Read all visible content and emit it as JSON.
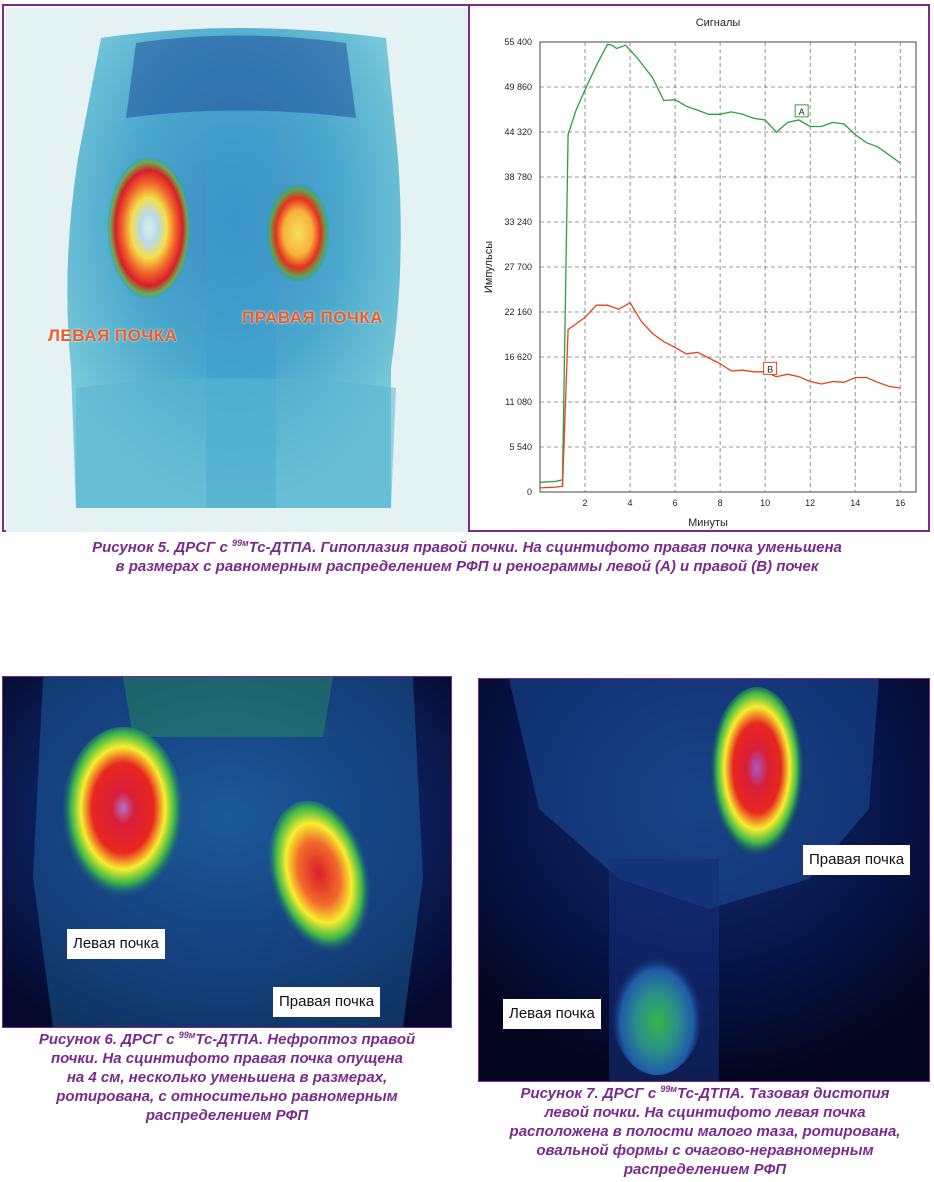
{
  "figure5": {
    "labels": {
      "left_kidney": "ЛЕВАЯ ПОЧКА",
      "right_kidney": "ПРАВАЯ ПОЧКА"
    },
    "caption": {
      "prefix": "Рисунок 5. ДРСГ с ",
      "isotope_sup": "99м",
      "line1_rest": "Тс-ДТПА. Гипоплазия правой почки. На сцинтифото правая почка уменьшена",
      "line2": "в размерах с равномерным распределением РФП и ренограммы левой (А) и правой (В) почек"
    }
  },
  "chart_data": {
    "type": "line",
    "title": "Сигналы",
    "xlabel": "Минуты",
    "ylabel": "Импульсы",
    "xlim": [
      0,
      16.7
    ],
    "ylim": [
      0,
      55400
    ],
    "xticks": [
      2,
      4,
      6,
      8,
      10,
      12,
      14,
      16
    ],
    "yticks": [
      0,
      5540,
      11080,
      16620,
      22160,
      27700,
      33240,
      38780,
      44320,
      49860,
      55400
    ],
    "ytick_labels": [
      "0",
      "5 540",
      "11 080",
      "16 620",
      "22 160",
      "27 700",
      "33 240",
      "38 780",
      "44 320",
      "49 860",
      "55 400"
    ],
    "grid": true,
    "series": [
      {
        "name": "A",
        "color": "#2e9e3e",
        "points": [
          [
            0,
            1200
          ],
          [
            0.7,
            1300
          ],
          [
            1.0,
            1500
          ],
          [
            1.25,
            44000
          ],
          [
            1.6,
            47000
          ],
          [
            2.0,
            49500
          ],
          [
            2.5,
            52500
          ],
          [
            3.0,
            55100
          ],
          [
            3.2,
            55000
          ],
          [
            3.4,
            54600
          ],
          [
            3.8,
            55000
          ],
          [
            4.3,
            53500
          ],
          [
            5.0,
            51000
          ],
          [
            5.5,
            48200
          ],
          [
            6.0,
            48300
          ],
          [
            6.5,
            47500
          ],
          [
            7.0,
            47000
          ],
          [
            7.5,
            46500
          ],
          [
            8.0,
            46500
          ],
          [
            8.5,
            46800
          ],
          [
            9.0,
            46500
          ],
          [
            9.5,
            46000
          ],
          [
            10.0,
            45800
          ],
          [
            10.5,
            44300
          ],
          [
            11.0,
            45500
          ],
          [
            11.5,
            45800
          ],
          [
            12.0,
            45000
          ],
          [
            12.5,
            45000
          ],
          [
            13.0,
            45500
          ],
          [
            13.5,
            45300
          ],
          [
            14.0,
            44000
          ],
          [
            14.5,
            43000
          ],
          [
            15.0,
            42500
          ],
          [
            15.5,
            41500
          ],
          [
            16.0,
            40500
          ]
        ],
        "label_at": [
          11.6,
          46800
        ]
      },
      {
        "name": "В",
        "color": "#e8401c",
        "points": [
          [
            0,
            500
          ],
          [
            0.7,
            600
          ],
          [
            1.0,
            700
          ],
          [
            1.25,
            20000
          ],
          [
            1.5,
            20500
          ],
          [
            2.0,
            21500
          ],
          [
            2.5,
            23000
          ],
          [
            3.0,
            23000
          ],
          [
            3.5,
            22500
          ],
          [
            4.0,
            23300
          ],
          [
            4.5,
            21000
          ],
          [
            5.0,
            19500
          ],
          [
            5.5,
            18500
          ],
          [
            6.0,
            17800
          ],
          [
            6.5,
            17000
          ],
          [
            7.0,
            17200
          ],
          [
            7.5,
            16500
          ],
          [
            8.0,
            15800
          ],
          [
            8.5,
            14900
          ],
          [
            9.0,
            15000
          ],
          [
            9.5,
            14800
          ],
          [
            10.0,
            14800
          ],
          [
            10.5,
            14200
          ],
          [
            11.0,
            14500
          ],
          [
            11.5,
            14200
          ],
          [
            12.0,
            13600
          ],
          [
            12.5,
            13300
          ],
          [
            13.0,
            13600
          ],
          [
            13.5,
            13500
          ],
          [
            14.0,
            14100
          ],
          [
            14.5,
            14100
          ],
          [
            15.0,
            13500
          ],
          [
            15.5,
            13000
          ],
          [
            16.0,
            12800
          ]
        ],
        "label_at": [
          10.2,
          15100
        ]
      }
    ]
  },
  "figure6": {
    "labels": {
      "left_kidney": "Левая почка",
      "right_kidney": "Правая почка"
    },
    "caption": {
      "prefix": "Рисунок 6. ДРСГ с ",
      "isotope_sup": "99м",
      "line1_rest": "Тс-ДТПА. Нефроптоз правой",
      "line2": "почки. На сцинтифото правая почка опущена",
      "line3": "на 4 см, несколько уменьшена в размерах,",
      "line4": "ротирована, с относительно равномерным",
      "line5": "распределением РФП"
    }
  },
  "figure7": {
    "labels": {
      "right_kidney": "Правая почка",
      "left_kidney": "Левая почка"
    },
    "caption": {
      "prefix": "Рисунок 7. ДРСГ с ",
      "isotope_sup": "99м",
      "line1_rest": "Тс-ДТПА. Тазовая дистопия",
      "line2": "левой почки. На сцинтифото левая почка",
      "line3": "расположена в полости малого таза, ротирована,",
      "line4": "овальной формы с очагово-неравномерным",
      "line5": "распределением РФП"
    }
  },
  "colors": {
    "caption": "#7a2a8c",
    "frame": "#7a2a8c",
    "scan_label": "#f15a24"
  }
}
